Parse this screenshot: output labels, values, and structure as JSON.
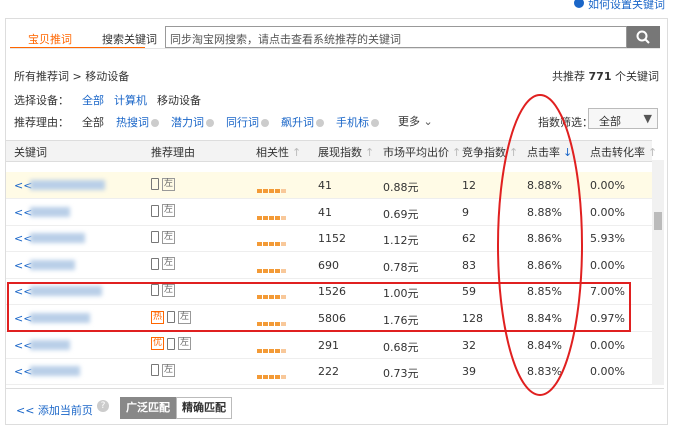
{
  "help_link": "如何设置关键词",
  "tabs": [
    "宝贝推词",
    "搜索关键词"
  ],
  "search_placeholder": "同步淘宝网搜索，请点击查看系统推荐的关键词",
  "breadcrumb": {
    "root": "所有推荐词",
    "separator": ">",
    "current": "移动设备"
  },
  "summary": {
    "prefix": "共推荐",
    "count": "771",
    "suffix": "个关键词"
  },
  "device_filter": {
    "label": "选择设备：",
    "options": [
      "全部",
      "计算机",
      "移动设备"
    ]
  },
  "reason_filter": {
    "label": "推荐理由：",
    "options": [
      "全部",
      "热搜词",
      "潜力词",
      "同行词",
      "飙升词",
      "手机标"
    ],
    "more": "更多"
  },
  "index_filter": {
    "label": "指数筛选：",
    "selected": "全部"
  },
  "table": {
    "headers": [
      "关键词",
      "推荐理由",
      "相关性",
      "展现指数",
      "市场平均出价",
      "竞争指数",
      "点击率",
      "点击转化率"
    ],
    "rows": [
      {
        "add": "<<",
        "badge": null,
        "tag": "左",
        "impressions": "41",
        "price": "0.88元",
        "competition": "12",
        "ctr": "8.88%",
        "conversion": "0.00%"
      },
      {
        "add": "<<",
        "badge": null,
        "tag": "左",
        "impressions": "41",
        "price": "0.69元",
        "competition": "9",
        "ctr": "8.88%",
        "conversion": "0.00%"
      },
      {
        "add": "<<",
        "badge": null,
        "tag": "左",
        "impressions": "1152",
        "price": "1.12元",
        "competition": "62",
        "ctr": "8.86%",
        "conversion": "5.93%"
      },
      {
        "add": "<<",
        "badge": null,
        "tag": "左",
        "impressions": "690",
        "price": "0.78元",
        "competition": "83",
        "ctr": "8.86%",
        "conversion": "0.00%"
      },
      {
        "add": "<<",
        "badge": null,
        "tag": "左",
        "impressions": "1526",
        "price": "1.00元",
        "competition": "59",
        "ctr": "8.85%",
        "conversion": "7.00%"
      },
      {
        "add": "<<",
        "badge": "热",
        "tag": "左",
        "impressions": "5806",
        "price": "1.76元",
        "competition": "128",
        "ctr": "8.84%",
        "conversion": "0.97%"
      },
      {
        "add": "<<",
        "badge": "优",
        "tag": "左",
        "impressions": "291",
        "price": "0.68元",
        "competition": "32",
        "ctr": "8.84%",
        "conversion": "0.00%"
      },
      {
        "add": "<<",
        "badge": null,
        "tag": "左",
        "impressions": "222",
        "price": "0.73元",
        "competition": "39",
        "ctr": "8.83%",
        "conversion": "0.00%"
      }
    ]
  },
  "footer": {
    "add_page": "<< 添加当前页",
    "match_options": [
      "广泛匹配",
      "精确匹配"
    ]
  }
}
